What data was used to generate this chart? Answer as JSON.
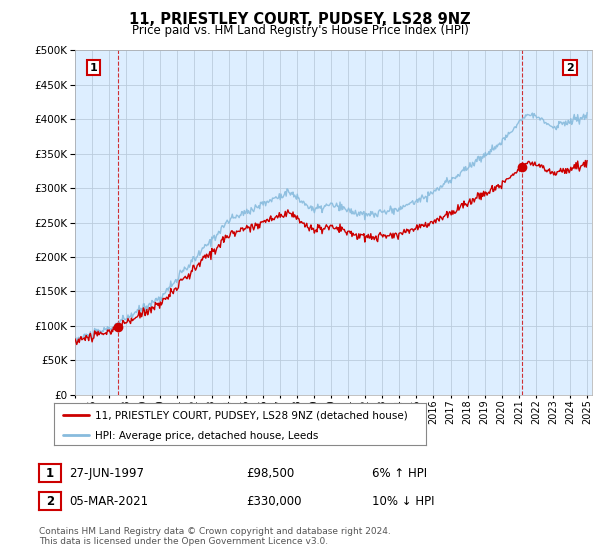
{
  "title": "11, PRIESTLEY COURT, PUDSEY, LS28 9NZ",
  "subtitle": "Price paid vs. HM Land Registry's House Price Index (HPI)",
  "legend_line1": "11, PRIESTLEY COURT, PUDSEY, LS28 9NZ (detached house)",
  "legend_line2": "HPI: Average price, detached house, Leeds",
  "annotation1_date": "27-JUN-1997",
  "annotation1_price": "£98,500",
  "annotation1_hpi": "6% ↑ HPI",
  "annotation2_date": "05-MAR-2021",
  "annotation2_price": "£330,000",
  "annotation2_hpi": "10% ↓ HPI",
  "footer": "Contains HM Land Registry data © Crown copyright and database right 2024.\nThis data is licensed under the Open Government Licence v3.0.",
  "property_color": "#cc0000",
  "hpi_color": "#88bbdd",
  "chart_bg": "#ddeeff",
  "background_color": "#ffffff",
  "grid_color": "#bbccdd",
  "ylim": [
    0,
    500000
  ],
  "yticks": [
    0,
    50000,
    100000,
    150000,
    200000,
    250000,
    300000,
    350000,
    400000,
    450000,
    500000
  ],
  "sale1_year": 1997.49,
  "sale1_price": 98500,
  "sale2_year": 2021.17,
  "sale2_price": 330000
}
